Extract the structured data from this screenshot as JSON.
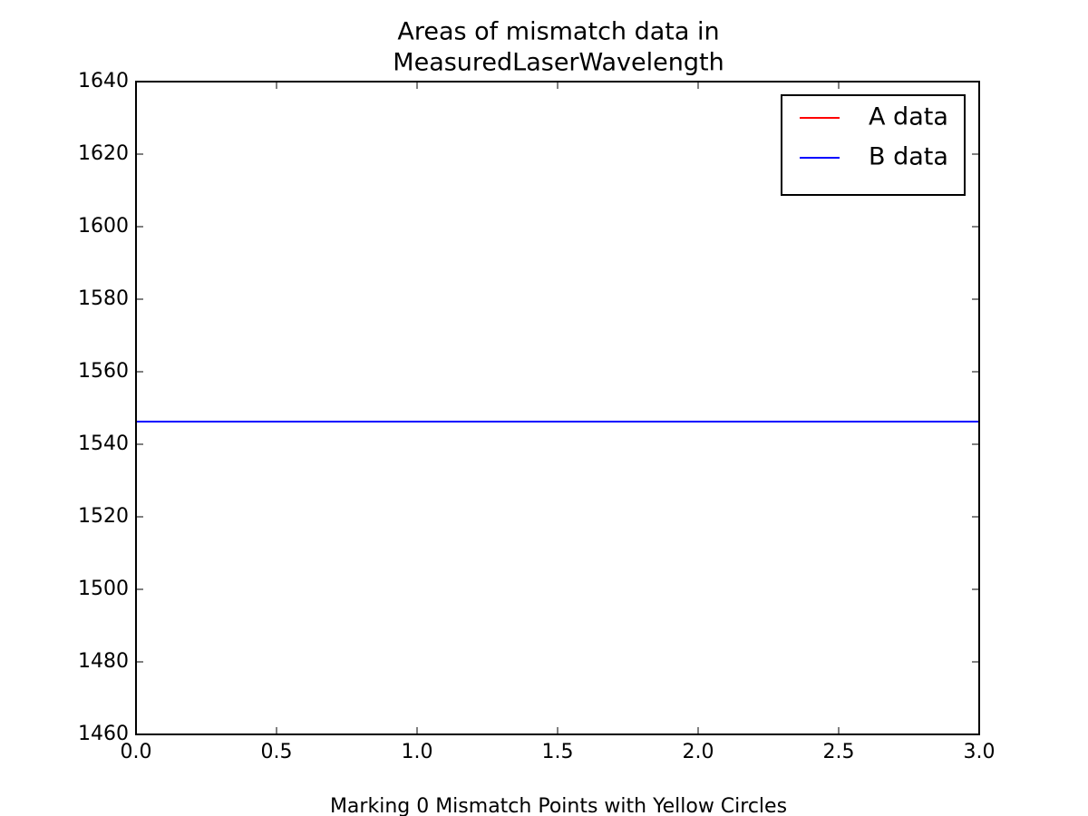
{
  "chart_data": {
    "type": "line",
    "title": [
      "Areas of mismatch data in",
      "MeasuredLaserWavelength"
    ],
    "x_label": "Marking 0 Mismatch Points with Yellow Circles",
    "x": [
      0,
      1,
      2,
      3
    ],
    "series": [
      {
        "name": "A data",
        "color": "#ff0000",
        "values": [
          1546.25,
          1546.25,
          1546.25,
          1546.25
        ]
      },
      {
        "name": "B data",
        "color": "#0000ff",
        "values": [
          1546.25,
          1546.25,
          1546.25,
          1546.25
        ]
      }
    ],
    "xlim": [
      0,
      3
    ],
    "xticks": [
      {
        "value": 0,
        "label": "0.0"
      },
      0.5,
      {
        "value": 1,
        "label": "1.0"
      },
      1.5,
      {
        "value": 2,
        "label": "2.0"
      },
      2.5,
      {
        "value": 3,
        "label": "3.0"
      }
    ],
    "ylim": [
      1460,
      1640
    ],
    "yticks": [
      1460,
      1480,
      1500,
      1520,
      1540,
      1560,
      1580,
      1600,
      1620,
      1640
    ],
    "grid": false,
    "legend": "upper right"
  }
}
